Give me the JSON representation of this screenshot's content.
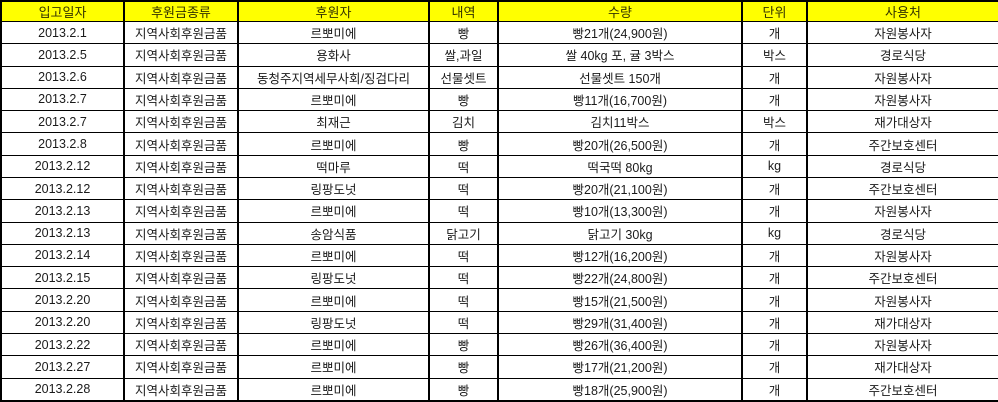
{
  "table": {
    "headers": [
      "입고일자",
      "후원금종류",
      "후원자",
      "내역",
      "수량",
      "단위",
      "사용처"
    ],
    "rows": [
      [
        "2013.2.1",
        "지역사회후원금품",
        "르뽀미에",
        "빵",
        "빵21개(24,900원)",
        "개",
        "자원봉사자"
      ],
      [
        "2013.2.5",
        "지역사회후원금품",
        "용화사",
        "쌀,과일",
        "쌀 40kg 포, 귤 3박스",
        "박스",
        "경로식당"
      ],
      [
        "2013.2.6",
        "지역사회후원금품",
        "동청주지역세무사회/징검다리",
        "선물셋트",
        "선물셋트 150개",
        "개",
        "자원봉사자"
      ],
      [
        "2013.2.7",
        "지역사회후원금품",
        "르뽀미에",
        "빵",
        "빵11개(16,700원)",
        "개",
        "자원봉사자"
      ],
      [
        "2013.2.7",
        "지역사회후원금품",
        "최재근",
        "김치",
        "김치11박스",
        "박스",
        "재가대상자"
      ],
      [
        "2013.2.8",
        "지역사회후원금품",
        "르뽀미에",
        "빵",
        "빵20개(26,500원)",
        "개",
        "주간보호센터"
      ],
      [
        "2013.2.12",
        "지역사회후원금품",
        "떡마루",
        "떡",
        "떡국떡 80kg",
        "kg",
        "경로식당"
      ],
      [
        "2013.2.12",
        "지역사회후원금품",
        "링팡도넛",
        "떡",
        "빵20개(21,100원)",
        "개",
        "주간보호센터"
      ],
      [
        "2013.2.13",
        "지역사회후원금품",
        "르뽀미에",
        "떡",
        "빵10개(13,300원)",
        "개",
        "자원봉사자"
      ],
      [
        "2013.2.13",
        "지역사회후원금품",
        "송암식품",
        "닭고기",
        "닭고기 30kg",
        "kg",
        "경로식당"
      ],
      [
        "2013.2.14",
        "지역사회후원금품",
        "르뽀미에",
        "떡",
        "빵12개(16,200원)",
        "개",
        "자원봉사자"
      ],
      [
        "2013.2.15",
        "지역사회후원금품",
        "링팡도넛",
        "떡",
        "빵22개(24,800원)",
        "개",
        "주간보호센터"
      ],
      [
        "2013.2.20",
        "지역사회후원금품",
        "르뽀미에",
        "떡",
        "빵15개(21,500원)",
        "개",
        "자원봉사자"
      ],
      [
        "2013.2.20",
        "지역사회후원금품",
        "링팡도넛",
        "떡",
        "빵29개(31,400원)",
        "개",
        "재가대상자"
      ],
      [
        "2013.2.22",
        "지역사회후원금품",
        "르뽀미에",
        "빵",
        "빵26개(36,400원)",
        "개",
        "자원봉사자"
      ],
      [
        "2013.2.27",
        "지역사회후원금품",
        "르뽀미에",
        "빵",
        "빵17개(21,200원)",
        "개",
        "재가대상자"
      ],
      [
        "2013.2.28",
        "지역사회후원금품",
        "르뽀미에",
        "빵",
        "빵18개(25,900원)",
        "개",
        "주간보호센터"
      ]
    ],
    "colors": {
      "header_bg": "#ffff00",
      "header_text": "#333300",
      "cell_text": "#1a1a1a",
      "border": "#000000",
      "cell_bg": "#ffffff"
    }
  }
}
